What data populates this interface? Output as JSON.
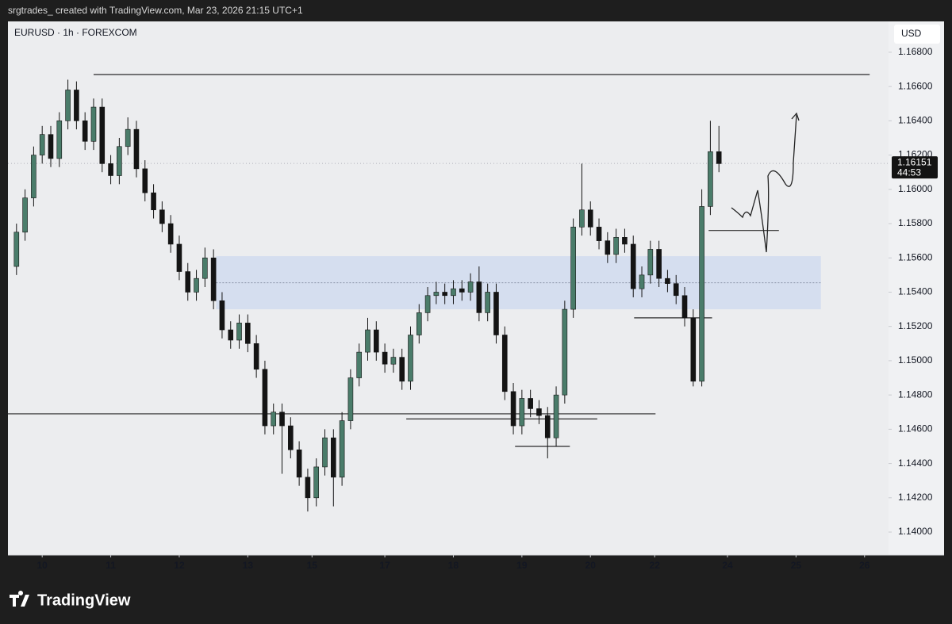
{
  "header": "srgtrades_ created with TradingView.com, Mar 23, 2026 21:15 UTC+1",
  "brand": "TradingView",
  "chart_data": {
    "type": "candlestick",
    "title": "EURUSD · 1h · FOREXCOM",
    "currency": "USD",
    "up_color": "#4a7c6a",
    "down_color": "#141414",
    "open": [
      1.1555,
      1.1575,
      1.1595,
      1.162,
      1.1632,
      1.1618,
      1.164,
      1.1658,
      1.164,
      1.1628,
      1.1648,
      1.1615,
      1.1608,
      1.1625,
      1.1635,
      1.1612,
      1.1598,
      1.1588,
      1.158,
      1.1568,
      1.1552,
      1.154,
      1.1548,
      1.156,
      1.1535,
      1.1518,
      1.1512,
      1.1522,
      1.151,
      1.1495,
      1.1462,
      1.147,
      1.1462,
      1.1448,
      1.1432,
      1.142,
      1.1438,
      1.1455,
      1.1432,
      1.1465,
      1.149,
      1.1505,
      1.1518,
      1.1505,
      1.1498,
      1.1502,
      1.1488,
      1.1515,
      1.1528,
      1.1538,
      1.154,
      1.1538,
      1.1542,
      1.154,
      1.1546,
      1.1528,
      1.154,
      1.1515,
      1.1482,
      1.1462,
      1.1478,
      1.1472,
      1.1468,
      1.1455,
      1.148,
      1.153,
      1.1578,
      1.1588,
      1.1578,
      1.157,
      1.1562,
      1.1572,
      1.1568,
      1.1542,
      1.155,
      1.1565,
      1.1548,
      1.1545,
      1.1538,
      1.1525,
      1.1488,
      1.159,
      1.1622
    ],
    "high": [
      1.158,
      1.16,
      1.1625,
      1.1637,
      1.1637,
      1.1645,
      1.1664,
      1.1663,
      1.1645,
      1.1653,
      1.1653,
      1.162,
      1.163,
      1.1642,
      1.164,
      1.1617,
      1.1603,
      1.1593,
      1.1585,
      1.1573,
      1.1557,
      1.1553,
      1.1566,
      1.1565,
      1.154,
      1.1523,
      1.1527,
      1.1527,
      1.1515,
      1.15,
      1.1475,
      1.1475,
      1.1467,
      1.1453,
      1.1437,
      1.1443,
      1.146,
      1.146,
      1.147,
      1.1495,
      1.151,
      1.1525,
      1.1523,
      1.151,
      1.1507,
      1.1507,
      1.152,
      1.1533,
      1.1543,
      1.1546,
      1.1545,
      1.1547,
      1.1547,
      1.1551,
      1.1555,
      1.1545,
      1.1545,
      1.152,
      1.1487,
      1.1483,
      1.1483,
      1.1477,
      1.1473,
      1.1485,
      1.1535,
      1.1583,
      1.1615,
      1.1593,
      1.1583,
      1.1575,
      1.1577,
      1.1577,
      1.1573,
      1.1555,
      1.157,
      1.157,
      1.1553,
      1.155,
      1.1543,
      1.153,
      1.16,
      1.164,
      1.1637
    ],
    "low": [
      1.155,
      1.157,
      1.159,
      1.1615,
      1.1613,
      1.1613,
      1.1635,
      1.1635,
      1.1623,
      1.1623,
      1.161,
      1.1603,
      1.1603,
      1.162,
      1.1607,
      1.1593,
      1.1583,
      1.1575,
      1.1563,
      1.1547,
      1.1535,
      1.1535,
      1.1543,
      1.153,
      1.1513,
      1.1507,
      1.1507,
      1.1505,
      1.149,
      1.1457,
      1.1457,
      1.1434,
      1.1443,
      1.1427,
      1.1412,
      1.1415,
      1.1433,
      1.1415,
      1.1427,
      1.146,
      1.1485,
      1.15,
      1.15,
      1.1493,
      1.1493,
      1.1483,
      1.1483,
      1.151,
      1.1523,
      1.1533,
      1.1533,
      1.1533,
      1.1535,
      1.1535,
      1.1523,
      1.1523,
      1.151,
      1.1477,
      1.1457,
      1.1457,
      1.1467,
      1.1463,
      1.1443,
      1.145,
      1.1475,
      1.1525,
      1.1573,
      1.1573,
      1.1565,
      1.1557,
      1.1557,
      1.1563,
      1.1537,
      1.1537,
      1.1545,
      1.1543,
      1.154,
      1.1533,
      1.152,
      1.1485,
      1.1485,
      1.1585,
      1.161
    ],
    "close": [
      1.1575,
      1.1595,
      1.162,
      1.1632,
      1.1618,
      1.164,
      1.1658,
      1.164,
      1.1628,
      1.1648,
      1.1615,
      1.1608,
      1.1625,
      1.1635,
      1.1612,
      1.1598,
      1.1588,
      1.158,
      1.1568,
      1.1552,
      1.154,
      1.1548,
      1.156,
      1.1535,
      1.1518,
      1.1512,
      1.1522,
      1.151,
      1.1495,
      1.1462,
      1.147,
      1.1462,
      1.1448,
      1.1432,
      1.142,
      1.1438,
      1.1455,
      1.1432,
      1.1465,
      1.149,
      1.1505,
      1.1518,
      1.1505,
      1.1498,
      1.1502,
      1.1488,
      1.1515,
      1.1528,
      1.1538,
      1.154,
      1.1538,
      1.1542,
      1.154,
      1.1546,
      1.1528,
      1.154,
      1.1515,
      1.1482,
      1.1462,
      1.1478,
      1.1472,
      1.1468,
      1.1455,
      1.148,
      1.153,
      1.1578,
      1.1588,
      1.1578,
      1.157,
      1.1562,
      1.1572,
      1.1568,
      1.1542,
      1.155,
      1.1565,
      1.1548,
      1.1545,
      1.1538,
      1.1525,
      1.1488,
      1.159,
      1.1622,
      1.1615
    ],
    "xlim": [
      -1,
      101.8
    ],
    "xticks": [
      {
        "value": 3,
        "label": "10"
      },
      {
        "value": 11,
        "label": "11"
      },
      {
        "value": 19,
        "label": "12"
      },
      {
        "value": 27,
        "label": "13"
      },
      {
        "value": 34.5,
        "label": "15"
      },
      {
        "value": 43,
        "label": "17"
      },
      {
        "value": 51,
        "label": "18"
      },
      {
        "value": 59,
        "label": "19"
      },
      {
        "value": 67,
        "label": "20"
      },
      {
        "value": 74.5,
        "label": "22"
      },
      {
        "value": 83,
        "label": "24"
      },
      {
        "value": 91,
        "label": "25"
      },
      {
        "value": 99,
        "label": "26"
      }
    ],
    "ylim": [
      1.13866,
      1.1698
    ],
    "yticks": [
      {
        "value": 1.168,
        "label": "1.16800"
      },
      {
        "value": 1.166,
        "label": "1.16600"
      },
      {
        "value": 1.164,
        "label": "1.16400"
      },
      {
        "value": 1.162,
        "label": "1.16200"
      },
      {
        "value": 1.16,
        "label": "1.16000"
      },
      {
        "value": 1.158,
        "label": "1.15800"
      },
      {
        "value": 1.156,
        "label": "1.15600"
      },
      {
        "value": 1.154,
        "label": "1.15400"
      },
      {
        "value": 1.152,
        "label": "1.15200"
      },
      {
        "value": 1.15,
        "label": "1.15000"
      },
      {
        "value": 1.148,
        "label": "1.14800"
      },
      {
        "value": 1.146,
        "label": "1.14600"
      },
      {
        "value": 1.144,
        "label": "1.14400"
      },
      {
        "value": 1.142,
        "label": "1.14200"
      },
      {
        "value": 1.14,
        "label": "1.14000"
      }
    ],
    "last_price": 1.16151,
    "countdown": "44:53",
    "levels": [
      {
        "y": 1.1667,
        "x": [
          9,
          99.6
        ]
      },
      {
        "y": 1.1469,
        "x": [
          -1,
          74.6
        ]
      },
      {
        "y": 1.1466,
        "x": [
          45.5,
          67.8
        ]
      },
      {
        "y": 1.145,
        "x": [
          58.2,
          64.6
        ]
      },
      {
        "y": 1.1525,
        "x": [
          72.1,
          81.2
        ]
      },
      {
        "y": 1.1576,
        "x": [
          80.8,
          89
        ]
      }
    ],
    "zone": {
      "y": [
        1.153,
        1.1561
      ],
      "x": [
        23.3,
        93.9
      ],
      "mid": 1.15455
    }
  }
}
